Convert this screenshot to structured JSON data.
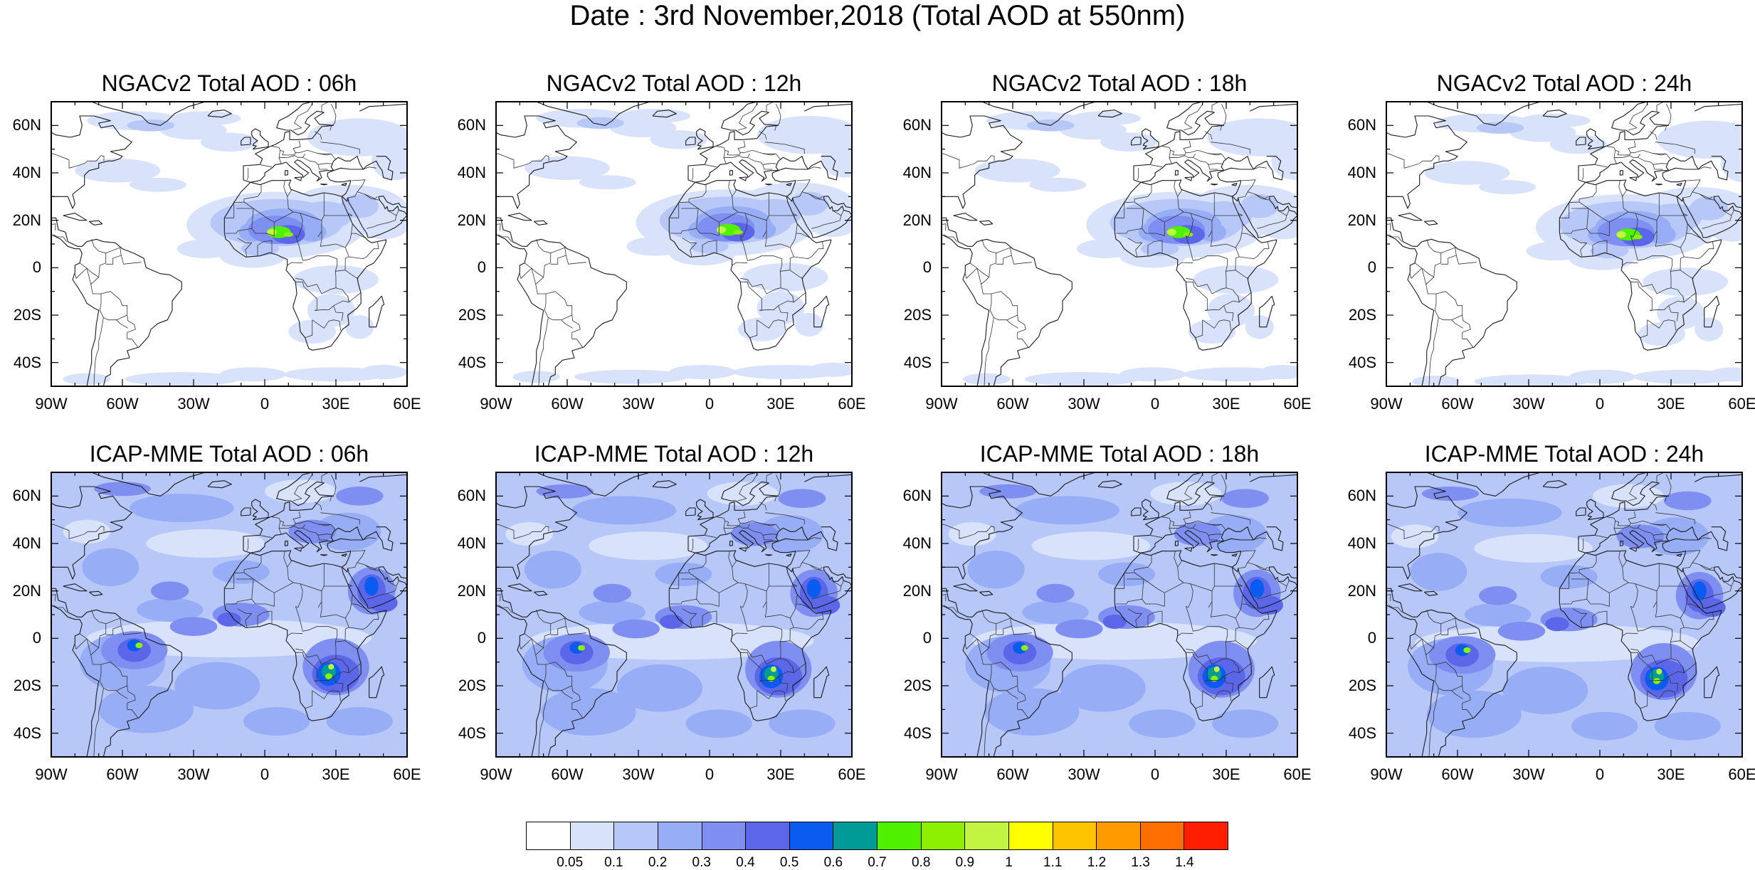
{
  "title": "Date : 3rd November,2018 (Total AOD at 550nm)",
  "lat_labels": [
    "60N",
    "40N",
    "20N",
    "0",
    "20S",
    "40S"
  ],
  "lon_labels": [
    "90W",
    "60W",
    "30W",
    "0",
    "30E",
    "60E"
  ],
  "panels": [
    {
      "title": "NGACv2 Total AOD : 06h",
      "model": "NGACv2",
      "hour": "06h"
    },
    {
      "title": "NGACv2 Total AOD : 12h",
      "model": "NGACv2",
      "hour": "12h"
    },
    {
      "title": "NGACv2 Total AOD : 18h",
      "model": "NGACv2",
      "hour": "18h"
    },
    {
      "title": "NGACv2 Total AOD : 24h",
      "model": "NGACv2",
      "hour": "24h"
    },
    {
      "title": "ICAP-MME Total AOD : 06h",
      "model": "ICAP-MME",
      "hour": "06h"
    },
    {
      "title": "ICAP-MME Total AOD : 12h",
      "model": "ICAP-MME",
      "hour": "12h"
    },
    {
      "title": "ICAP-MME Total AOD : 18h",
      "model": "ICAP-MME",
      "hour": "18h"
    },
    {
      "title": "ICAP-MME Total AOD : 24h",
      "model": "ICAP-MME",
      "hour": "24h"
    }
  ],
  "colorbar": {
    "labels": [
      "0.05",
      "0.1",
      "0.2",
      "0.3",
      "0.4",
      "0.5",
      "0.6",
      "0.7",
      "0.8",
      "0.9",
      "1",
      "1.1",
      "1.2",
      "1.3",
      "1.4"
    ],
    "colors": [
      "#ffffff",
      "#d8e2fb",
      "#b7c8f8",
      "#97adf6",
      "#7f8ff1",
      "#5b66e8",
      "#0a5cf0",
      "#009b96",
      "#4ff000",
      "#8cf000",
      "#c2f542",
      "#ffff00",
      "#ffc400",
      "#ff9b00",
      "#ff6e00",
      "#ff1e00"
    ]
  },
  "colors": {
    "ngac_bg": "#ffffff",
    "icap_bg": "#b7c8f8",
    "dust_core": "#7f8ff1",
    "hotspot": "#4ff000"
  }
}
